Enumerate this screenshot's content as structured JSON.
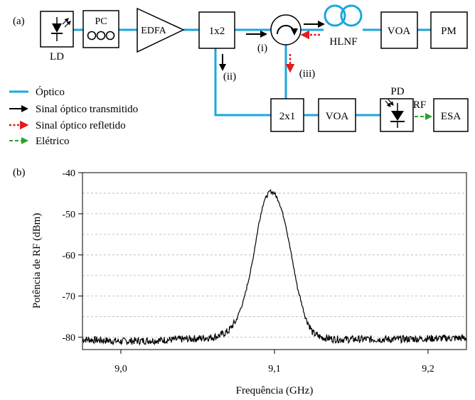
{
  "panel_a": {
    "label": "(a)",
    "blocks": {
      "ld": "LD",
      "pc": "PC",
      "edfa": "EDFA",
      "splitter": "1x2",
      "coupler": "2x1",
      "hlnf": "HLNF",
      "voa_top": "VOA",
      "pm": "PM",
      "voa_bottom": "VOA",
      "pd": "PD",
      "rf": "RF",
      "esa": "ESA"
    },
    "ports": {
      "i": "(i)",
      "ii": "(ii)",
      "iii": "(iii)"
    },
    "legend": [
      {
        "label": "Óptico",
        "color": "#1aa7e0",
        "style": "line"
      },
      {
        "label": "Sinal óptico transmitido",
        "color": "#000000",
        "style": "arrow"
      },
      {
        "label": "Sinal óptico refletido",
        "color": "#e41a1c",
        "style": "dotted-arrow"
      },
      {
        "label": "Elétrico",
        "color": "#2ca02c",
        "style": "dashed-arrow"
      }
    ]
  },
  "panel_b": {
    "label": "(b)"
  },
  "chart_data": {
    "type": "line",
    "title": "",
    "xlabel": "Frequência (GHz)",
    "ylabel": "Potência de RF (dBm)",
    "xlim": [
      8.975,
      9.225
    ],
    "ylim": [
      -83,
      -40
    ],
    "xticks": [
      9.0,
      9.1,
      9.2
    ],
    "xtick_labels": [
      "9,0",
      "9,1",
      "9,2"
    ],
    "yticks": [
      -40,
      -50,
      -60,
      -70,
      -80
    ],
    "ytick_labels": [
      "-40",
      "-50",
      "-60",
      "-70",
      "-80"
    ],
    "grid": "horizontal-dashed",
    "series": [
      {
        "color": "#000000",
        "x": [
          8.975,
          9.0,
          9.02,
          9.04,
          9.05,
          9.06,
          9.065,
          9.07,
          9.075,
          9.08,
          9.085,
          9.09,
          9.093,
          9.097,
          9.1,
          9.103,
          9.107,
          9.11,
          9.115,
          9.12,
          9.125,
          9.13,
          9.14,
          9.16,
          9.18,
          9.2,
          9.225
        ],
        "y": [
          -80.5,
          -81,
          -80.8,
          -80.5,
          -80.3,
          -80,
          -79.5,
          -78.5,
          -76,
          -71,
          -63,
          -52,
          -47,
          -44.5,
          -45,
          -47,
          -52,
          -58,
          -68,
          -75,
          -79,
          -80,
          -80.5,
          -80.5,
          -80.5,
          -80.3,
          -80.2
        ]
      }
    ]
  }
}
